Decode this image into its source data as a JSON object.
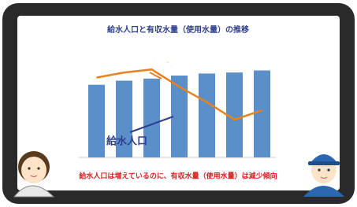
{
  "chart_data": {
    "type": "bar_line",
    "title": "給水人口と有収水量（使用水量）の推移",
    "categories": [
      null,
      null,
      null,
      null,
      null,
      null,
      null
    ],
    "series": [
      {
        "name": "給水人口",
        "type": "bar",
        "color": "#5b8fc9",
        "values": [
          71,
          75,
          77,
          80,
          82,
          83,
          85
        ]
      },
      {
        "name": "有収水量",
        "type": "line",
        "color": "#e8821e",
        "axis": "y2",
        "values": [
          78,
          83,
          86,
          69,
          54,
          37,
          46
        ]
      }
    ],
    "ylim": [
      0,
      100
    ],
    "y2lim": [
      0,
      100
    ],
    "caption": "給水人口は増えているのに、有収水量（使用水量）は減少傾向"
  }
}
